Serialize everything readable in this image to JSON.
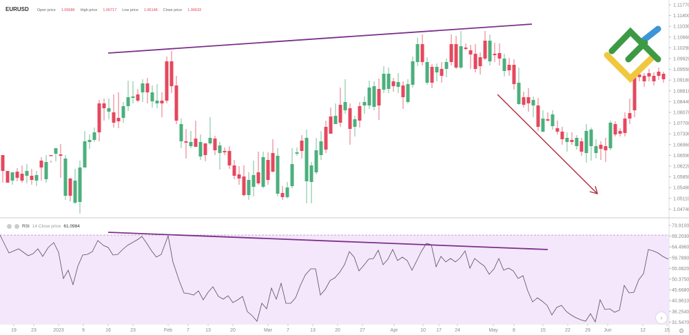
{
  "header": {
    "symbol": "EURUSD",
    "open_label": "Open price",
    "open_value": "1.06586",
    "high_label": "High price",
    "high_value": "1.06717",
    "low_label": "Low price",
    "low_value": "1.06148",
    "close_label": "Close price",
    "close_value": "1.06633"
  },
  "rsi_legend": {
    "name": "RSI",
    "params": "14 Close price",
    "value": "61.0984"
  },
  "colors": {
    "bull": "#4caf7d",
    "bear": "#e5485e",
    "trendline": "#7b2f8a",
    "arrow": "#b0283c",
    "rsi_bg": "#f4e6fb",
    "rsi_line": "#5a4a5e",
    "logo_green": "#3c9a45",
    "logo_blue": "#3d95d8",
    "logo_yellow": "#f0c840"
  },
  "icons": {
    "nav_right": "›",
    "settings": "⚙︎"
  },
  "chart_data": [
    {
      "type": "candlestick",
      "title": "EURUSD",
      "y_ticks": [
        "1.11770",
        "1.11400",
        "1.11030",
        "1.10660",
        "1.10290",
        "1.09920",
        "1.09550",
        "1.09180",
        "1.08810",
        "1.08440",
        "1.08070",
        "1.07700",
        "1.07330",
        "1.06960",
        "1.06590",
        "1.06220",
        "1.05850",
        "1.05480",
        "1.05110",
        "1.04740"
      ],
      "x_ticks": [
        "19",
        "23",
        "2023",
        "9",
        "16",
        "23",
        "Feb",
        "7",
        "13",
        "20",
        "Mar",
        "7",
        "13",
        "20",
        "27",
        "Apr",
        "10",
        "17",
        "24",
        "May",
        "8",
        "15",
        "22",
        "29",
        "Jun",
        "12",
        "15"
      ],
      "annotations": [
        "rising resistance trendline across price highs (Jan to May)",
        "red downward arrow from May high toward June lows",
        "LiteFinance logo"
      ],
      "last_ohlc": {
        "open": 1.06586,
        "high": 1.06717,
        "low": 1.06148,
        "close": 1.06633
      }
    },
    {
      "type": "line",
      "title": "RSI 14 Close price",
      "current_value": 61.0984,
      "y_ticks": [
        "73.9100",
        "69.2030",
        "64.4960",
        "59.7890",
        "55.0820",
        "50.3750",
        "45.6680",
        "40.9610",
        "36.2540",
        "31.5470"
      ],
      "overbought_level": 69.203,
      "annotations": [
        "falling trendline across RSI highs (bearish divergence)"
      ]
    }
  ]
}
